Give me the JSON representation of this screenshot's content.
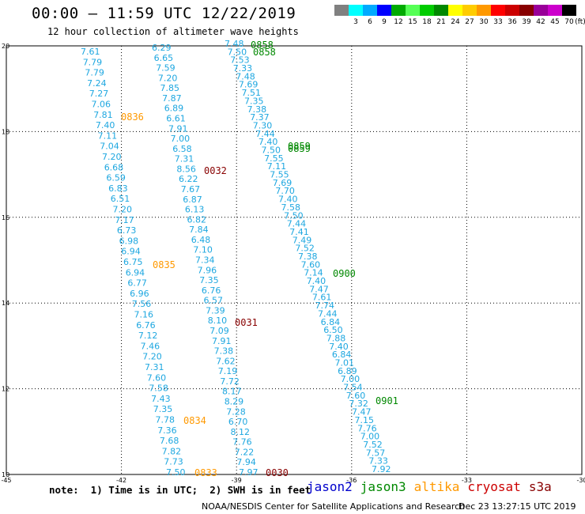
{
  "title": "00:00 – 11:59 UTC 12/22/2019",
  "subtitle": "12 hour collection of altimeter wave heights",
  "scale": {
    "unit": "(ft)",
    "swatches": [
      {
        "color": "#808080",
        "label": ""
      },
      {
        "color": "#00ffff",
        "label": "3"
      },
      {
        "color": "#00aaff",
        "label": "6"
      },
      {
        "color": "#0000ff",
        "label": "9"
      },
      {
        "color": "#00aa00",
        "label": "12"
      },
      {
        "color": "#55ff55",
        "label": "15"
      },
      {
        "color": "#00cc00",
        "label": "18"
      },
      {
        "color": "#008800",
        "label": "21"
      },
      {
        "color": "#ffff00",
        "label": "24"
      },
      {
        "color": "#ffcc00",
        "label": "27"
      },
      {
        "color": "#ff9900",
        "label": "30"
      },
      {
        "color": "#ff0000",
        "label": "33"
      },
      {
        "color": "#cc0000",
        "label": "36"
      },
      {
        "color": "#880000",
        "label": "39"
      },
      {
        "color": "#990099",
        "label": "42"
      },
      {
        "color": "#cc00cc",
        "label": "45"
      },
      {
        "color": "#000000",
        "label": "70"
      }
    ]
  },
  "axes": {
    "lon_ticks": [
      "-45",
      "-42",
      "-39",
      "-36",
      "-33",
      "-30"
    ],
    "lat_ticks": [
      "20",
      "18",
      "16",
      "14",
      "12",
      "10"
    ]
  },
  "passes": [
    {
      "label": "0836",
      "color": "#ff9900"
    },
    {
      "label": "0835",
      "color": "#ff9900"
    },
    {
      "label": "0834",
      "color": "#ff9900"
    },
    {
      "label": "0833",
      "color": "#ff9900"
    },
    {
      "label": "0032",
      "color": "#880000"
    },
    {
      "label": "0031",
      "color": "#880000"
    },
    {
      "label": "0030",
      "color": "#880000"
    },
    {
      "label": "0858",
      "color": "#008800"
    },
    {
      "label": "0858",
      "color": "#008800"
    },
    {
      "label": "0859",
      "color": "#008800"
    },
    {
      "label": "0859",
      "color": "#008800"
    },
    {
      "label": "0900",
      "color": "#008800"
    },
    {
      "label": "0901",
      "color": "#008800"
    }
  ],
  "tracks": {
    "track1": [
      "7.61",
      "7.79",
      "7.79",
      "7.24",
      "7.27",
      "7.06",
      "7.81",
      "7.40",
      "7.11",
      "7.04",
      "7.20",
      "6.68",
      "6.59",
      "6.83",
      "6.51",
      "7.20",
      "7.17",
      "6.73",
      "6.98",
      "6.94",
      "6.75",
      "6.94",
      "6.77",
      "6.96",
      "7.56",
      "7.16",
      "6.76",
      "7.12",
      "7.46",
      "7.20",
      "7.31",
      "7.60",
      "7.58",
      "7.43",
      "7.35",
      "7.78",
      "7.36",
      "7.68",
      "7.82",
      "7.73",
      "7.50"
    ],
    "track2": [
      "6.29",
      "6.65",
      "7.59",
      "7.20",
      "7.85",
      "7.87",
      "6.89",
      "6.61",
      "7.91",
      "7.00",
      "6.58",
      "7.31",
      "8.56",
      "6.22",
      "7.67",
      "6.87",
      "6.13",
      "6.82",
      "7.84",
      "6.48",
      "7.10",
      "7.34",
      "7.96",
      "7.35",
      "6.76",
      "6.57",
      "7.39",
      "8.10",
      "7.09",
      "7.91",
      "7.38",
      "7.62",
      "7.19",
      "7.72",
      "8.17",
      "8.29",
      "7.28",
      "6.70",
      "8.12",
      "7.76",
      "7.22",
      "7.94",
      "7.97"
    ],
    "track3": [
      "7.48",
      "7.50",
      "7.53",
      "7.33",
      "7.48",
      "7.69",
      "7.51",
      "7.35",
      "7.38",
      "7.37",
      "7.30",
      "7.44",
      "7.40",
      "7.50",
      "7.55",
      "7.11",
      "7.55",
      "7.69",
      "7.70",
      "7.40",
      "7.58",
      "7.50",
      "7.44",
      "7.41",
      "7.49",
      "7.52",
      "7.38",
      "7.60",
      "7.14",
      "7.40",
      "7.47",
      "7.61",
      "7.74",
      "7.44",
      "6.84",
      "6.50",
      "7.88",
      "7.40",
      "6.84",
      "7.01",
      "6.89",
      "7.00",
      "7.54",
      "7.60",
      "7.32",
      "7.47",
      "7.15",
      "7.76",
      "7.00",
      "7.52",
      "7.57",
      "7.33",
      "7.92"
    ]
  },
  "footer": {
    "note": "note:  1) Time is in UTC;  2) SWH is in feet",
    "missions": [
      {
        "name": "jason2",
        "color": "#0000cc"
      },
      {
        "name": "jason3",
        "color": "#008800"
      },
      {
        "name": "altika",
        "color": "#ff9900"
      },
      {
        "name": "cryosat",
        "color": "#cc0000"
      },
      {
        "name": "s3a",
        "color": "#880000"
      }
    ],
    "credit": "NOAA/NESDIS Center for Satellite Applications and Research",
    "timestamp": "Dec 23 13:27:15 UTC 2019"
  }
}
